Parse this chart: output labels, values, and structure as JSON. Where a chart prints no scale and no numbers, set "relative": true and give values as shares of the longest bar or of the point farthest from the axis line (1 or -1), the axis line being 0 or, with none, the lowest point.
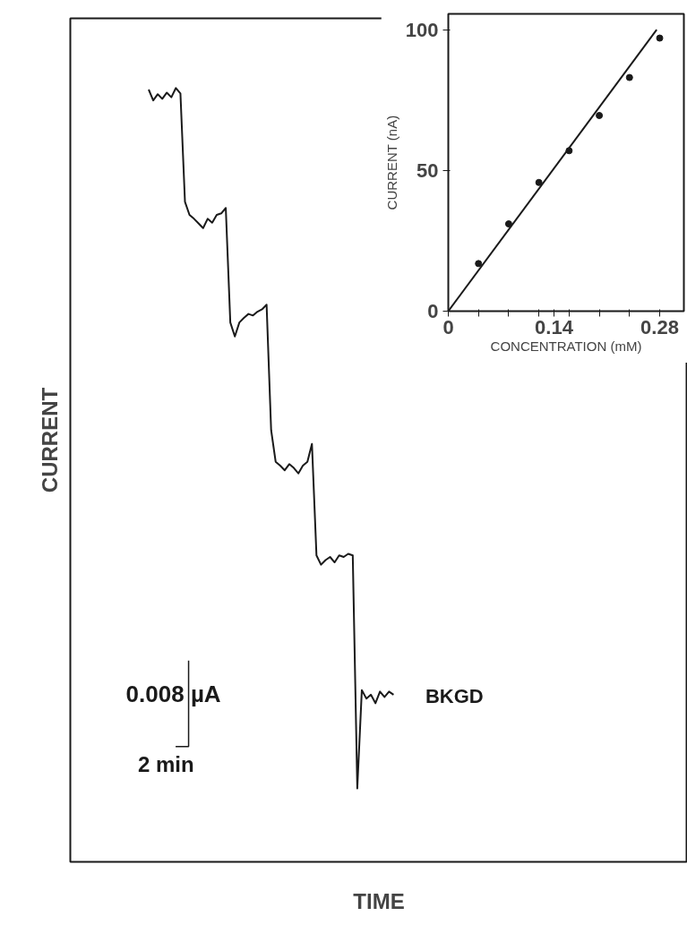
{
  "chart_data": [
    {
      "type": "line",
      "relative": true,
      "xlabel": "TIME",
      "ylabel": "CURRENT",
      "color": "#1a1a1a",
      "categories": [
        null,
        null,
        null,
        null,
        null,
        null,
        null,
        null,
        null,
        null,
        null,
        null,
        null,
        null,
        null,
        null,
        null,
        null,
        null,
        null,
        null,
        null,
        null,
        null,
        null,
        null,
        null,
        null,
        null,
        null,
        null,
        null,
        null,
        null,
        null,
        null,
        null,
        null,
        null,
        null,
        null,
        null,
        null,
        null,
        null,
        null,
        null,
        null,
        null,
        null,
        null,
        null,
        null,
        null,
        null
      ],
      "values": [
        0.998,
        0.984,
        0.992,
        0.986,
        0.994,
        0.988,
        1,
        0.993,
        0.853,
        0.836,
        0.831,
        0.825,
        0.819,
        0.831,
        0.826,
        0.836,
        0.838,
        0.845,
        0.697,
        0.679,
        0.697,
        0.703,
        0.708,
        0.706,
        0.711,
        0.714,
        0.72,
        0.558,
        0.517,
        0.512,
        0.506,
        0.514,
        0.509,
        0.502,
        0.512,
        0.517,
        0.54,
        0.396,
        0.384,
        0.39,
        0.394,
        0.387,
        0.396,
        0.394,
        0.398,
        0.396,
        0.095,
        0.222,
        0.211,
        0.216,
        0.205,
        0.22,
        0.213,
        0.22,
        0.216
      ],
      "annotations": [
        "0.008 µA",
        "2 min",
        "BKGD"
      ]
    },
    {
      "type": "scatter",
      "xlabel": "CONCENTRATION (mM)",
      "ylabel": "CURRENT (nA)",
      "xlim": [
        0,
        0.312
      ],
      "ylim": [
        0,
        105.6
      ],
      "xticks": [
        0,
        {
          "value": 0.04,
          "label": null
        },
        {
          "value": 0.08,
          "label": null
        },
        {
          "value": 0.12,
          "label": null
        },
        0.14,
        {
          "value": 0.16,
          "label": null
        },
        {
          "value": 0.2,
          "label": null
        },
        {
          "value": 0.24,
          "label": null
        },
        0.28
      ],
      "yticks": [
        0,
        50,
        100
      ],
      "grid": false,
      "series": [
        {
          "type": "scatter",
          "marker": "circle",
          "color": "#1a1a1a",
          "x": [
            0.04,
            0.08,
            0.12,
            0.16,
            0.2,
            0.24,
            0.28
          ],
          "values": [
            16.9,
            31,
            45.7,
            57,
            69.5,
            83,
            97
          ]
        },
        {
          "type": "line",
          "color": "#1a1a1a",
          "x": [
            0,
            0.276
          ],
          "values": [
            0,
            100
          ]
        }
      ]
    }
  ]
}
